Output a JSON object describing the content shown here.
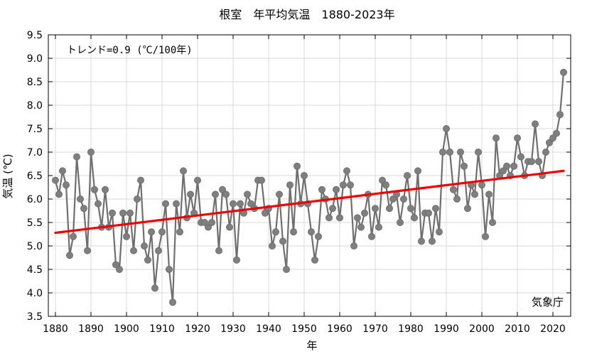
{
  "chart_data": {
    "type": "line",
    "title": "根室　年平均気温　1880-2023年",
    "xlabel": "年",
    "ylabel": "気温 (℃)",
    "xlim": [
      1878,
      2025
    ],
    "ylim": [
      3.5,
      9.5
    ],
    "x_ticks": [
      1880,
      1890,
      1900,
      1910,
      1920,
      1930,
      1940,
      1950,
      1960,
      1970,
      1980,
      1990,
      2000,
      2010,
      2020
    ],
    "y_ticks": [
      3.5,
      4.0,
      4.5,
      5.0,
      5.5,
      6.0,
      6.5,
      7.0,
      7.5,
      8.0,
      8.5,
      9.0,
      9.5
    ],
    "grid": true,
    "series": [
      {
        "x": [
          1880,
          1881,
          1882,
          1883,
          1884,
          1885,
          1886,
          1887,
          1888,
          1889,
          1890,
          1891,
          1892,
          1893,
          1894,
          1895,
          1896,
          1897,
          1898,
          1899,
          1900,
          1901,
          1902,
          1903,
          1904,
          1905,
          1906,
          1907,
          1908,
          1909,
          1910,
          1911,
          1912,
          1913,
          1914,
          1915,
          1916,
          1917,
          1918,
          1919,
          1920,
          1921,
          1922,
          1923,
          1924,
          1925,
          1926,
          1927,
          1928,
          1929,
          1930,
          1931,
          1932,
          1933,
          1934,
          1935,
          1936,
          1937,
          1938,
          1939,
          1940,
          1941,
          1942,
          1943,
          1944,
          1945,
          1946,
          1947,
          1948,
          1949,
          1950,
          1951,
          1952,
          1953,
          1954,
          1955,
          1956,
          1957,
          1958,
          1959,
          1960,
          1961,
          1962,
          1963,
          1964,
          1965,
          1966,
          1967,
          1968,
          1969,
          1970,
          1971,
          1972,
          1973,
          1974,
          1975,
          1976,
          1977,
          1978,
          1979,
          1980,
          1981,
          1982,
          1983,
          1984,
          1985,
          1986,
          1987,
          1988,
          1989,
          1990,
          1991,
          1992,
          1993,
          1994,
          1995,
          1996,
          1997,
          1998,
          1999,
          2000,
          2001,
          2002,
          2003,
          2004,
          2005,
          2006,
          2007,
          2008,
          2009,
          2010,
          2011,
          2012,
          2013,
          2014,
          2015,
          2016,
          2017,
          2018,
          2019,
          2020,
          2021,
          2022,
          2023
        ],
        "values": [
          6.4,
          6.1,
          6.6,
          6.3,
          4.8,
          5.2,
          6.9,
          6.0,
          5.8,
          4.9,
          7.0,
          6.2,
          5.9,
          5.4,
          6.2,
          5.4,
          5.7,
          4.6,
          4.5,
          5.7,
          5.2,
          5.7,
          4.9,
          6.0,
          6.4,
          5.0,
          4.7,
          5.3,
          4.1,
          4.9,
          5.3,
          5.9,
          4.5,
          3.8,
          5.9,
          5.3,
          6.6,
          5.6,
          6.1,
          5.7,
          6.4,
          5.5,
          5.5,
          5.4,
          5.5,
          6.1,
          4.9,
          6.2,
          6.1,
          5.4,
          5.9,
          4.7,
          5.9,
          5.7,
          6.1,
          5.9,
          5.8,
          6.4,
          6.4,
          5.7,
          5.8,
          5.0,
          5.3,
          6.1,
          5.1,
          4.5,
          6.3,
          5.3,
          6.7,
          5.9,
          6.5,
          5.9,
          5.3,
          4.7,
          5.2,
          6.2,
          6.0,
          5.6,
          5.8,
          6.2,
          5.6,
          6.3,
          6.6,
          6.3,
          5.0,
          5.6,
          5.4,
          5.7,
          6.1,
          5.2,
          5.8,
          5.4,
          6.4,
          6.3,
          5.8,
          6.0,
          6.1,
          5.5,
          6.0,
          6.5,
          5.8,
          5.6,
          6.6,
          5.1,
          5.7,
          5.7,
          5.1,
          5.8,
          5.3,
          7.0,
          7.5,
          7.0,
          6.2,
          6.0,
          7.0,
          6.7,
          5.8,
          6.3,
          6.1,
          7.0,
          6.3,
          5.2,
          6.1,
          5.5,
          7.3,
          6.5,
          6.6,
          6.7,
          6.5,
          6.7,
          7.3,
          6.9,
          6.5,
          6.8,
          6.8,
          7.6,
          6.8,
          6.5,
          7.0,
          7.2,
          7.3,
          7.4,
          7.8,
          8.7
        ]
      }
    ],
    "trend": {
      "label": "トレンド=0.9 (℃/100年)",
      "slope_per_year": 0.009225,
      "x": [
        1880,
        2023
      ],
      "y": [
        5.28,
        6.6
      ]
    },
    "annotations": {
      "source": "気象庁"
    },
    "colors": {
      "series": "#6f6f6f",
      "marker": "#7f7f7f",
      "trend": "#ee0000",
      "grid": "#d8d8d8",
      "axes": "#000000"
    }
  }
}
